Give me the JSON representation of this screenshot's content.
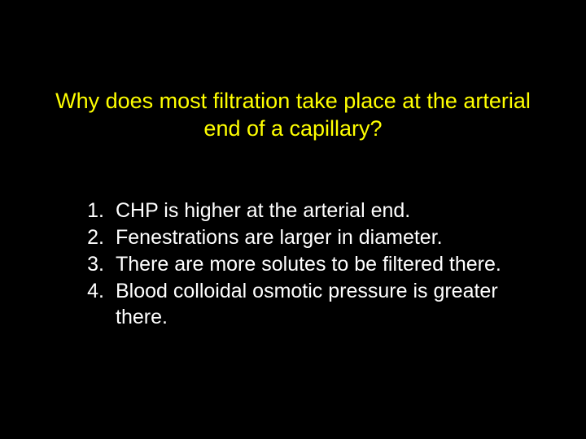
{
  "slide": {
    "background_color": "#000000",
    "question": {
      "text": "Why does most filtration take place at the arterial end of a capillary?",
      "color": "#ffff00",
      "fontsize": 27
    },
    "answers": {
      "color": "#ffffff",
      "fontsize": 25,
      "items": [
        {
          "num": "1.",
          "text": "CHP is higher at the arterial end."
        },
        {
          "num": "2.",
          "text": "Fenestrations are larger in diameter."
        },
        {
          "num": "3.",
          "text": "There are more solutes to be filtered there."
        },
        {
          "num": "4.",
          "text": "Blood colloidal osmotic pressure is greater there."
        }
      ]
    }
  }
}
